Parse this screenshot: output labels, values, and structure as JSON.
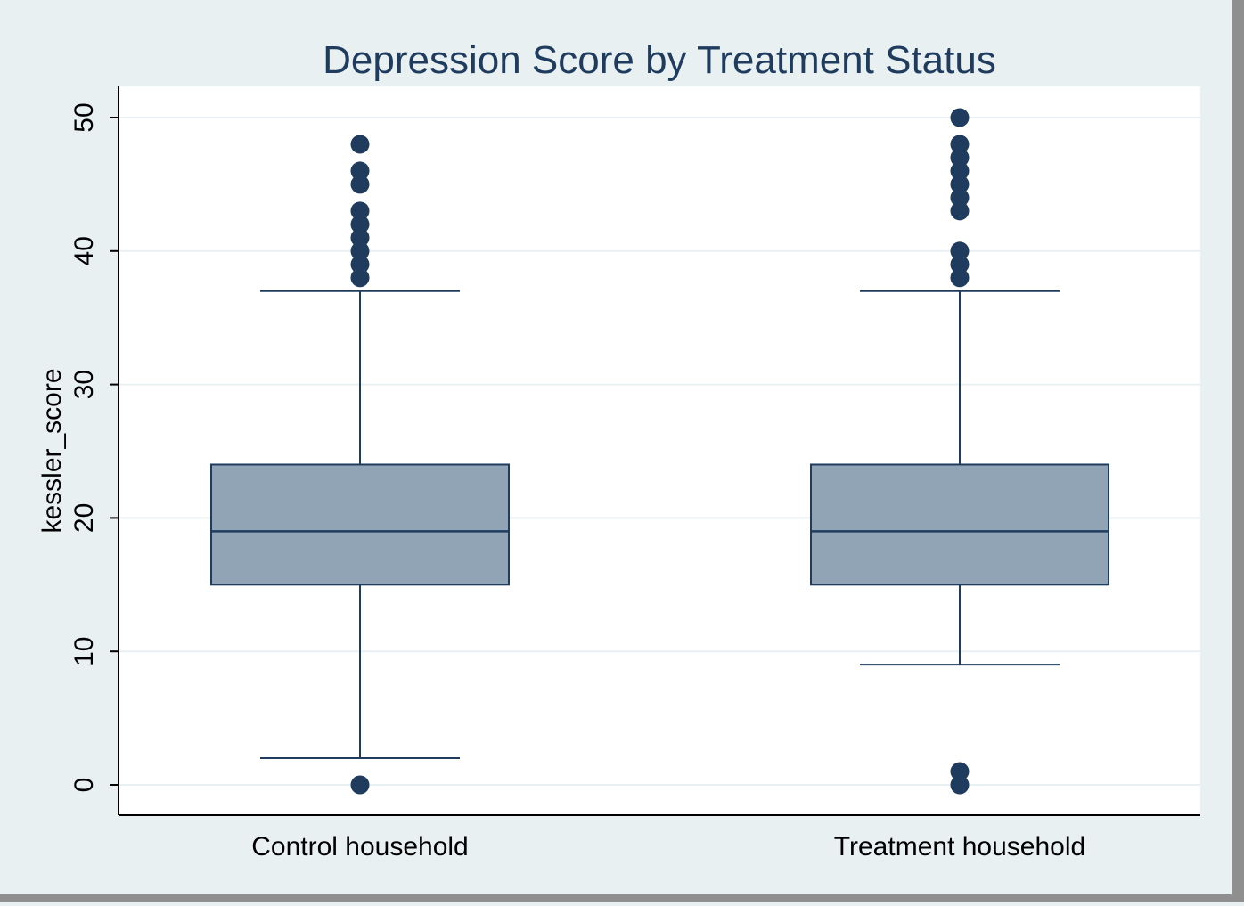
{
  "chart_data": {
    "type": "box",
    "title": "Depression Score by Treatment Status",
    "xlabel": "",
    "ylabel": "kessler_score",
    "ylim": [
      0,
      52.5
    ],
    "yticks": [
      0,
      10,
      20,
      30,
      40,
      50
    ],
    "grid": true,
    "categories": [
      "Control household",
      "Treatment household"
    ],
    "boxes": [
      {
        "category": "Control household",
        "whisker_low": 2,
        "q1": 15,
        "median": 19,
        "q3": 24,
        "whisker_high": 37,
        "outliers": [
          0,
          38,
          39,
          40,
          41,
          42,
          43,
          45,
          46,
          48
        ]
      },
      {
        "category": "Treatment household",
        "whisker_low": 9,
        "q1": 15,
        "median": 19,
        "q3": 24,
        "whisker_high": 37,
        "outliers": [
          0,
          1,
          38,
          39,
          40,
          43,
          44,
          45,
          46,
          47,
          48,
          50
        ]
      }
    ],
    "colors": {
      "box_fill": "#90a4b6",
      "line": "#1f3c5e",
      "outlier": "#1f3c5e",
      "plot_bg": "#ffffff",
      "outer_bg": "#e9f0f2",
      "grid": "#e9f0f2",
      "title": "#1f3c5e",
      "text": "#000000"
    }
  }
}
